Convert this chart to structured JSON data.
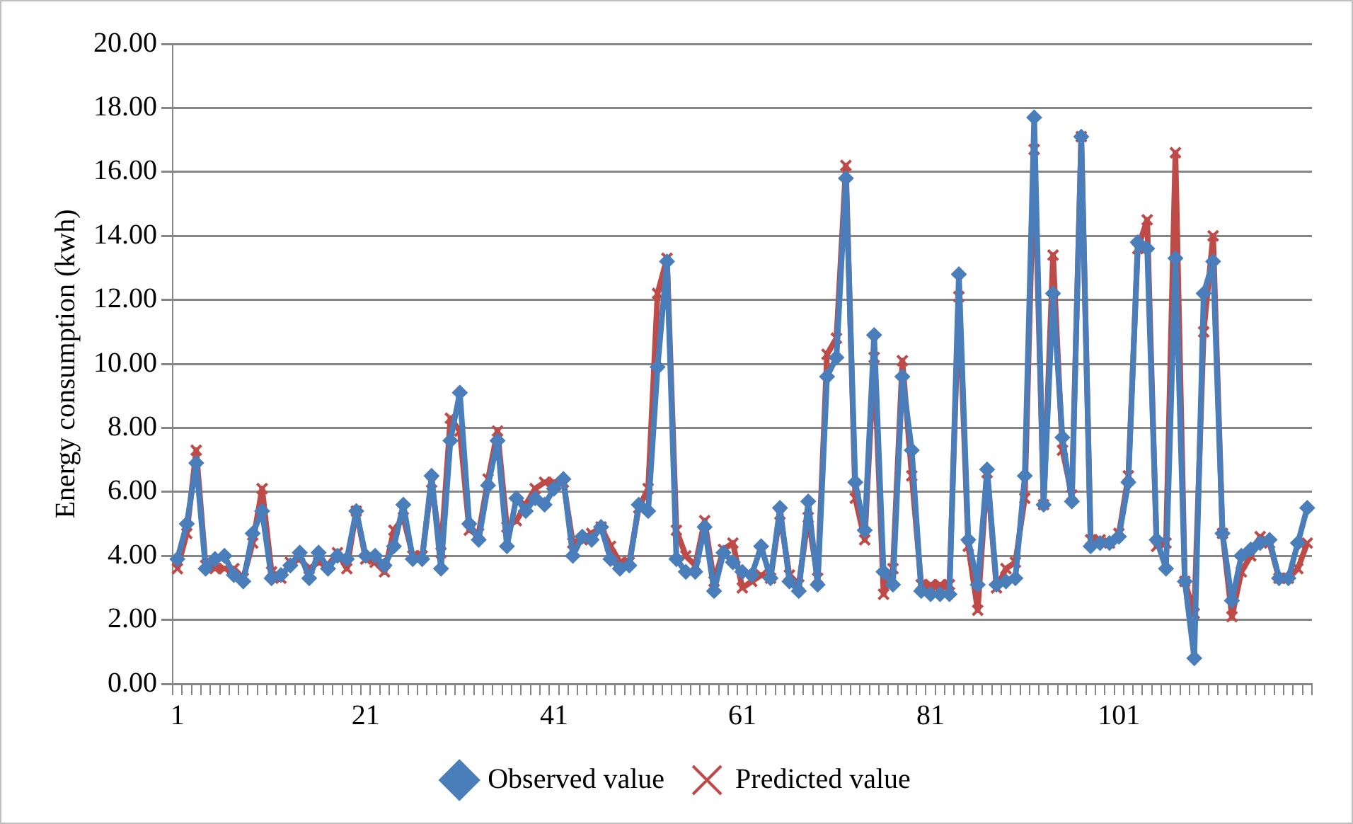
{
  "chart_data": {
    "type": "line",
    "ylabel": "Energy consumption (kwh)",
    "categories": [
      "1",
      null,
      null,
      null,
      null,
      null,
      null,
      null,
      null,
      null,
      null,
      null,
      null,
      null,
      null,
      null,
      null,
      null,
      null,
      null,
      "21",
      null,
      null,
      null,
      null,
      null,
      null,
      null,
      null,
      null,
      null,
      null,
      null,
      null,
      null,
      null,
      null,
      null,
      null,
      null,
      "41",
      null,
      null,
      null,
      null,
      null,
      null,
      null,
      null,
      null,
      null,
      null,
      null,
      null,
      null,
      null,
      null,
      null,
      null,
      null,
      "61",
      null,
      null,
      null,
      null,
      null,
      null,
      null,
      null,
      null,
      null,
      null,
      null,
      null,
      null,
      null,
      null,
      null,
      null,
      null,
      "81",
      null,
      null,
      null,
      null,
      null,
      null,
      null,
      null,
      null,
      null,
      null,
      null,
      null,
      null,
      null,
      null,
      null,
      null,
      null,
      "101",
      null,
      null,
      null,
      null,
      null,
      null,
      null,
      null,
      null,
      null,
      null,
      null,
      null,
      null,
      null,
      null,
      null,
      null,
      null,
      null
    ],
    "series": [
      {
        "name": "Observed value",
        "color": "#4a7ebb",
        "marker": "diamond",
        "values": [
          3.9,
          5.0,
          6.9,
          3.6,
          3.9,
          4.0,
          3.4,
          3.2,
          4.7,
          5.4,
          3.3,
          3.4,
          3.7,
          4.1,
          3.3,
          4.1,
          3.6,
          4.0,
          3.9,
          5.4,
          4.0,
          4.0,
          3.7,
          4.3,
          5.6,
          3.9,
          3.9,
          6.5,
          3.6,
          7.6,
          9.1,
          5.0,
          4.5,
          6.2,
          7.6,
          4.3,
          5.8,
          5.4,
          5.8,
          5.6,
          6.1,
          6.4,
          4.0,
          4.6,
          4.5,
          4.9,
          3.9,
          3.6,
          3.7,
          5.6,
          5.4,
          9.9,
          13.2,
          3.9,
          3.5,
          3.5,
          4.9,
          2.9,
          4.1,
          3.8,
          3.5,
          3.4,
          4.3,
          3.3,
          5.5,
          3.2,
          2.9,
          5.7,
          3.1,
          9.6,
          10.2,
          15.8,
          6.3,
          4.8,
          10.9,
          3.5,
          3.1,
          9.6,
          7.3,
          2.9,
          2.8,
          2.8,
          2.8,
          12.8,
          4.5,
          3.1,
          6.7,
          3.1,
          3.2,
          3.3,
          6.5,
          17.7,
          5.6,
          12.2,
          7.7,
          5.7,
          17.1,
          4.3,
          4.4,
          4.4,
          4.6,
          6.3,
          13.8,
          13.6,
          4.5,
          3.6,
          13.3,
          3.2,
          0.8,
          12.2,
          13.2,
          4.7,
          2.6,
          4.0,
          4.2,
          4.4,
          4.5,
          3.3,
          3.3,
          4.4,
          5.5
        ]
      },
      {
        "name": "Predicted value",
        "color": "#be4b48",
        "marker": "cross",
        "values": [
          3.6,
          4.7,
          7.3,
          3.7,
          3.6,
          3.6,
          3.6,
          3.3,
          4.4,
          6.1,
          3.5,
          3.3,
          3.8,
          3.9,
          3.6,
          3.8,
          3.7,
          4.1,
          3.6,
          5.4,
          3.9,
          3.8,
          3.5,
          4.8,
          5.2,
          4.0,
          4.0,
          6.3,
          4.1,
          8.3,
          7.9,
          4.8,
          4.7,
          6.4,
          7.9,
          4.9,
          5.1,
          5.6,
          6.1,
          6.3,
          6.3,
          6.3,
          4.4,
          4.5,
          4.7,
          4.9,
          4.3,
          3.8,
          3.8,
          5.5,
          6.1,
          12.2,
          13.3,
          4.8,
          4.0,
          3.7,
          5.1,
          3.2,
          4.2,
          4.4,
          3.0,
          3.2,
          3.4,
          3.3,
          5.3,
          3.4,
          3.1,
          5.2,
          3.3,
          10.3,
          10.8,
          16.2,
          5.8,
          4.5,
          10.2,
          2.8,
          3.6,
          10.1,
          6.5,
          3.1,
          3.1,
          3.1,
          3.1,
          12.1,
          4.3,
          2.3,
          6.6,
          3.0,
          3.6,
          3.8,
          5.8,
          16.7,
          5.6,
          13.4,
          7.3,
          5.9,
          17.1,
          4.5,
          4.5,
          4.4,
          4.7,
          6.5,
          13.6,
          14.5,
          4.3,
          4.4,
          16.6,
          3.2,
          2.2,
          11.0,
          14.0,
          4.7,
          2.1,
          3.5,
          4.0,
          4.6,
          4.4,
          3.3,
          3.3,
          3.6,
          4.4
        ]
      }
    ],
    "ylim": [
      0,
      20
    ],
    "yticks": [
      {
        "value": 0,
        "label": "0.00"
      },
      {
        "value": 2,
        "label": "2.00"
      },
      {
        "value": 4,
        "label": "4.00"
      },
      {
        "value": 6,
        "label": "6.00"
      },
      {
        "value": 8,
        "label": "8.00"
      },
      {
        "value": 10,
        "label": "10.00"
      },
      {
        "value": 12,
        "label": "12.00"
      },
      {
        "value": 14,
        "label": "14.00"
      },
      {
        "value": 16,
        "label": "16.00"
      },
      {
        "value": 18,
        "label": "18.00"
      },
      {
        "value": 20,
        "label": "20.00"
      }
    ],
    "grid": "y",
    "legend": "bottom",
    "line_style": "solid"
  }
}
